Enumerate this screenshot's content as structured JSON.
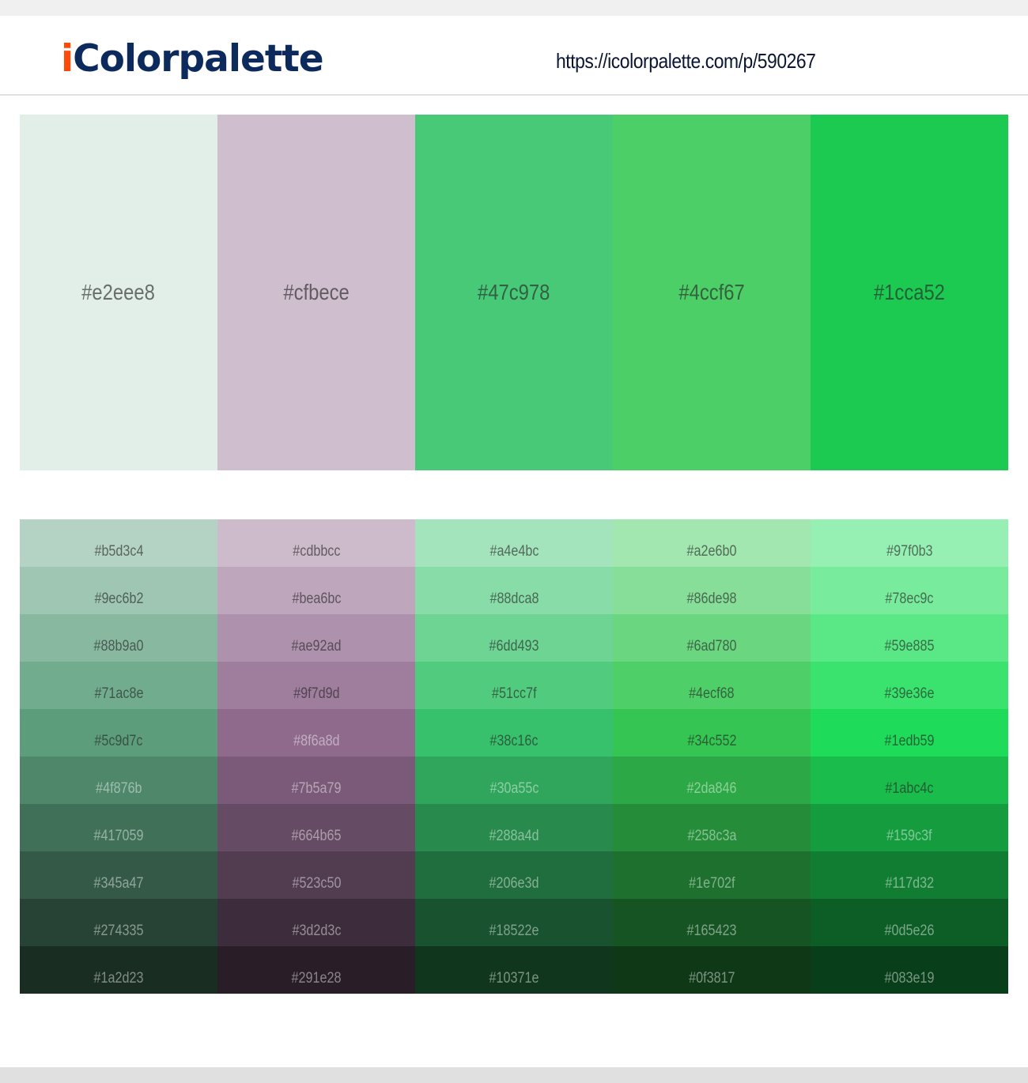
{
  "header": {
    "logo_prefix": "i",
    "logo_rest": "Colorpalette",
    "url": "https://icolorpalette.com/p/590267"
  },
  "brand_colors": {
    "logo_i": "#ff4a0a",
    "logo_text": "#0d2a5c"
  },
  "palette": [
    "#e2eee8",
    "#cfbece",
    "#47c978",
    "#4ccf67",
    "#1cca52"
  ],
  "shades": [
    [
      "#b5d3c4",
      "#9ec6b2",
      "#88b9a0",
      "#71ac8e",
      "#5c9d7c",
      "#4f876b",
      "#417059",
      "#345a47",
      "#274335",
      "#1a2d23"
    ],
    [
      "#cdbbcc",
      "#bea6bc",
      "#ae92ad",
      "#9f7d9d",
      "#8f6a8d",
      "#7b5a79",
      "#664b65",
      "#523c50",
      "#3d2d3c",
      "#291e28"
    ],
    [
      "#a4e4bc",
      "#88dca8",
      "#6dd493",
      "#51cc7f",
      "#38c16c",
      "#30a55c",
      "#288a4d",
      "#206e3d",
      "#18522e",
      "#10371e"
    ],
    [
      "#a2e6b0",
      "#86de98",
      "#6ad780",
      "#4ecf68",
      "#34c552",
      "#2da846",
      "#258c3a",
      "#1e702f",
      "#165423",
      "#0f3817"
    ],
    [
      "#97f0b3",
      "#78ec9c",
      "#59e885",
      "#39e36e",
      "#1edb59",
      "#1abc4c",
      "#159c3f",
      "#117d32",
      "#0d5e26",
      "#083e19"
    ]
  ]
}
